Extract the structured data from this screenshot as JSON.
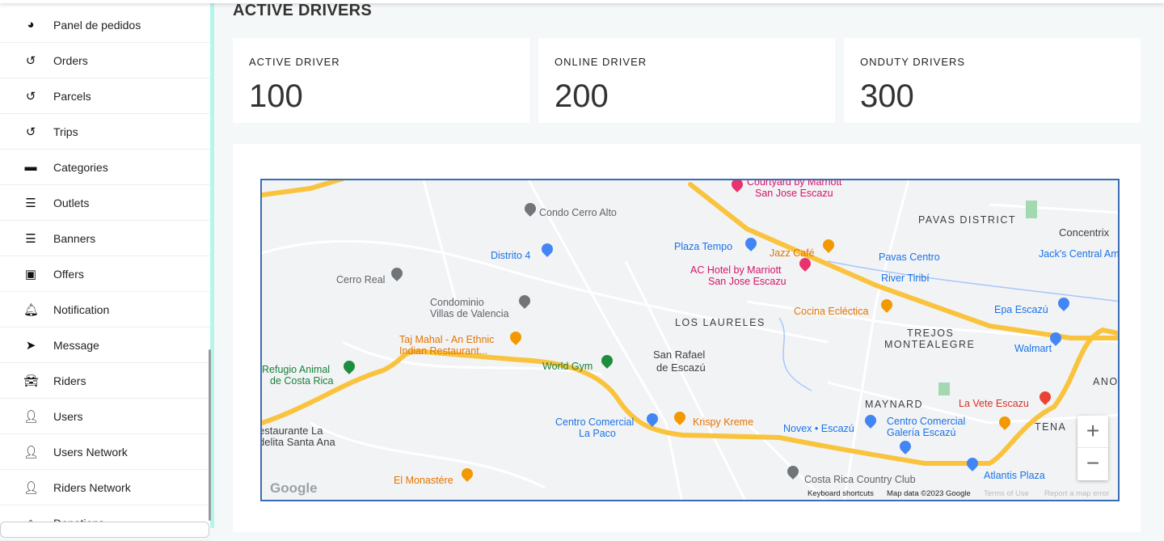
{
  "sidebar": {
    "items": [
      {
        "label": "Panel de pedidos",
        "icon": "tachometer-icon"
      },
      {
        "label": "Orders",
        "icon": "history-icon"
      },
      {
        "label": "Parcels",
        "icon": "history-icon"
      },
      {
        "label": "Trips",
        "icon": "history-icon"
      },
      {
        "label": "Categories",
        "icon": "archive-icon"
      },
      {
        "label": "Outlets",
        "icon": "bars-icon"
      },
      {
        "label": "Banners",
        "icon": "bars-icon"
      },
      {
        "label": "Offers",
        "icon": "money-bill-icon"
      },
      {
        "label": "Notification",
        "icon": "bell-icon"
      },
      {
        "label": "Message",
        "icon": "paper-plane-icon"
      },
      {
        "label": "Riders",
        "icon": "car-icon"
      },
      {
        "label": "Users",
        "icon": "user-icon"
      },
      {
        "label": "Users Network",
        "icon": "user-icon"
      },
      {
        "label": "Riders Network",
        "icon": "user-icon"
      },
      {
        "label": "Donations",
        "icon": "gift-icon"
      }
    ]
  },
  "main": {
    "title": "ACTIVE DRIVERS",
    "cards": [
      {
        "label": "ACTIVE DRIVER",
        "value": "100"
      },
      {
        "label": "ONLINE DRIVER",
        "value": "200"
      },
      {
        "label": "ONDUTY DRIVERS",
        "value": "300"
      }
    ]
  },
  "map": {
    "labels": [
      "Condo Cerro Alto",
      "Distrito 4",
      "Cerro Real",
      "Condominio",
      "Villas de Valencia",
      "Taj Mahal - An Ethnic",
      "Indian Restaurant...",
      "Refugio Animal",
      "de Costa Rica",
      "World Gym",
      "San Rafael",
      "de Escazú",
      "LOS LAURELES",
      "Plaza Tempo",
      "AC Hotel by Marriott",
      "San Jose Escazu",
      "Courtyard by Marriott",
      "San Jose Escazu",
      "Jazz Café",
      "Cocina Ecléctica",
      "Pavas Centro",
      "PAVAS DISTRICT",
      "Concentrix",
      "Jack's Central Am",
      "Epa Escazú",
      "TREJOS",
      "MONTEALEGRE",
      "Walmart",
      "MAYNARD",
      "La Vete Escazu",
      "TENA",
      "ANO",
      "Centro Comercial",
      "La Paco",
      "Krispy Kreme",
      "Novex • Escazú",
      "Centro Comercial",
      "Galería Escazú",
      "Costa Rica Country Club",
      "Atlantis Plaza",
      "El Monastére",
      "estaurante La",
      "delita Santa Ana",
      "River Tiribí"
    ],
    "zoom_in": "+",
    "zoom_out": "−",
    "logo": "Google",
    "footer": {
      "shortcuts": "Keyboard shortcuts",
      "data": "Map data ©2023 Google",
      "terms": "Terms of Use",
      "report": "Report a map error"
    },
    "colors": {
      "highway": "#f9c33d",
      "road": "#ffffff",
      "border": "#3a6db5"
    }
  }
}
